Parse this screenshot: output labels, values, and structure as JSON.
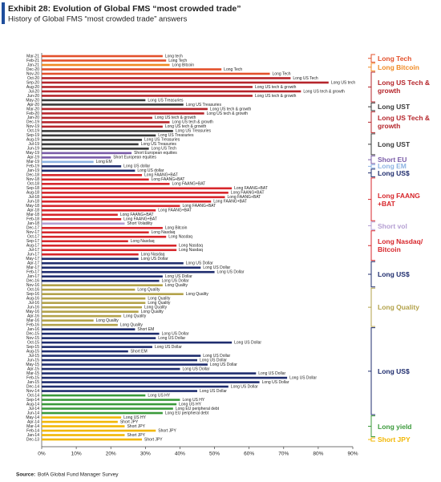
{
  "chart_data": {
    "type": "bar",
    "orientation": "horizontal",
    "title": "Exhibit 28: Evolution of Global FMS “most crowded trade”",
    "subtitle": "History of Global FMS “most crowded trade” answers",
    "source_label": "Source:",
    "source": "BofA Global Fund Manager Survey",
    "categories": [
      "Mar-21",
      "Feb-21",
      "Jan-21",
      "Dec-20",
      "Nov-20",
      "Oct-20",
      "Sep-20",
      "Aug-20",
      "Jul-20",
      "Jun-20",
      "May-20",
      "Apr-20",
      "Mar-20",
      "Feb-20",
      "Jan-20",
      "Dec-19",
      "Nov-19",
      "Oct-19",
      "Sep-19",
      "Aug-19",
      "Jul-19",
      "Jun-19",
      "May-19",
      "Apr-19",
      "Mar-19",
      "Feb-19",
      "Jan-19",
      "Dec-18",
      "Nov-18",
      "Oct-18",
      "Sep-18",
      "Aug-18",
      "Jul-18",
      "Jun-18",
      "May-18",
      "Apr-18",
      "Mar-18",
      "Feb-18",
      "Jan-18",
      "Dec-17",
      "Nov-17",
      "Oct-17",
      "Sep-17",
      "Aug-17",
      "Jul-17",
      "Jun-17",
      "May-17",
      "Apr-17",
      "Mar-17",
      "Feb-17",
      "Jan-17",
      "Dec-16",
      "Nov-16",
      "Oct-16",
      "Sep-16",
      "Aug-16",
      "Jul-16",
      "Jun-16",
      "May-16",
      "Apr-16",
      "Mar-16",
      "Feb-16",
      "Jan-16",
      "Dec-15",
      "Nov-15",
      "Oct-15",
      "Sep-15",
      "Aug-15",
      "Jul-15",
      "Jun-15",
      "May-15",
      "Apr-15",
      "Mar-15",
      "Feb-15",
      "Jan-15",
      "Dec-14",
      "Nov-14",
      "Oct-14",
      "Sep-14",
      "Aug-14",
      "Jul-14",
      "Jun-14",
      "May-14",
      "Apr-14",
      "Mar-14",
      "Feb-14",
      "Jan-14",
      "Dec-13"
    ],
    "values": [
      35,
      36,
      37,
      52,
      66,
      72,
      83,
      61,
      75,
      61,
      30,
      41,
      48,
      47,
      32,
      37,
      35,
      38,
      33,
      29,
      28,
      31,
      26,
      20,
      15,
      23,
      27,
      29,
      31,
      37,
      55,
      54,
      53,
      49,
      40,
      33,
      22,
      23,
      24,
      35,
      31,
      36,
      25,
      39,
      39,
      28,
      28,
      41,
      46,
      50,
      35,
      34,
      35,
      27,
      41,
      30,
      30,
      29,
      28,
      23,
      15,
      22,
      27,
      34,
      33,
      55,
      32,
      25,
      46,
      45,
      48,
      40,
      62,
      71,
      63,
      54,
      45,
      30,
      40,
      39,
      38,
      35,
      23,
      22,
      24,
      33,
      24,
      29
    ],
    "labels": [
      "Long tech",
      "Long Tech",
      "Long Bitcoin",
      "Long Tech",
      "Long Tech",
      "Long US Tech",
      "Long US tech",
      "Long US tech & growth",
      "Long US tech & growth",
      "Long US tech & growth",
      "Long US Treasuries",
      "Long US Treasuries",
      "Long US tech & growth",
      "Long US tech & growth",
      "Long US tech & growth",
      "Long US tech & growth",
      "Long US tech & growth",
      "Long US Treasuries",
      "Long US Treasuries",
      "Long US Treasuries",
      "Long US Treasuries",
      "Long US Tech",
      "Short European equities",
      "Short European equities",
      "Long EM",
      "Long US dollar",
      "Long US dollar",
      "Long FAANG+BAT",
      "Long FAANG+BAT",
      "Long FAANG+BAT",
      "Long FAANG+BAT",
      "Long FAANG+BAT",
      "Long FAANG+BAT",
      "Long FAANG+BAT",
      "Long FAANG+BAT",
      "Long FAANG+BAT",
      "Long FAANG+BAT",
      "Long FAANG+BAT",
      "Short Volatility",
      "Long Bitcoin",
      "Long Nasdaq",
      "Long Nasdaq",
      "Long Nasdaq",
      "Long Nasdaq",
      "Long Nasdaq",
      "Long Nasdaq",
      "Long US Dollar",
      "Long US Dollar",
      "Long US Dollar",
      "Long US Dollar",
      "Long US Dollar",
      "Long US Dollar",
      "Long Quality",
      "Long Quality",
      "Long Quality",
      "Long Quality",
      "Long Quality",
      "Long Quality",
      "Long Quality",
      "Long Quality",
      "Long Quality",
      "Long Quality",
      "Short EM",
      "Long US Dollar",
      "Long US Dollar",
      "Long US Dollar",
      "Long US Dollar",
      "Short EM",
      "Long US Dollar",
      "Long US Dollar",
      "Long US Dollar",
      "Long US Dollar",
      "Long US Dollar",
      "Long US Dollar",
      "Long US Dollar",
      "Long US Dollar",
      "Long US Dollar",
      "Long US HY",
      "Long US HY",
      "Long US HY",
      "Long EU peripheral debt",
      "Long EU peripheral debt",
      "Long US HY",
      "Short JPY",
      "Short JPY",
      "Short JPY",
      "Short JPY",
      "Short JPY"
    ],
    "colors": [
      "#e3502b",
      "#e3502b",
      "#f08a24",
      "#e3502b",
      "#e3502b",
      "#b5252b",
      "#b5252b",
      "#b5252b",
      "#b5252b",
      "#b5252b",
      "#3a3a3a",
      "#3a3a3a",
      "#b5252b",
      "#b5252b",
      "#b5252b",
      "#b5252b",
      "#b5252b",
      "#3a3a3a",
      "#3a3a3a",
      "#3a3a3a",
      "#3a3a3a",
      "#3a3a3a",
      "#7a5ca8",
      "#7a5ca8",
      "#8db3e2",
      "#1f2d6e",
      "#1f2d6e",
      "#d7262b",
      "#d7262b",
      "#d7262b",
      "#d7262b",
      "#d7262b",
      "#d7262b",
      "#d7262b",
      "#d7262b",
      "#d7262b",
      "#d7262b",
      "#d7262b",
      "#b49ed2",
      "#d7262b",
      "#d7262b",
      "#d7262b",
      "#d7262b",
      "#d7262b",
      "#d7262b",
      "#d7262b",
      "#1f2d6e",
      "#1f2d6e",
      "#1f2d6e",
      "#1f2d6e",
      "#1f2d6e",
      "#1f2d6e",
      "#b3a24a",
      "#b3a24a",
      "#b3a24a",
      "#b3a24a",
      "#b3a24a",
      "#b3a24a",
      "#b3a24a",
      "#b3a24a",
      "#b3a24a",
      "#b3a24a",
      "#1f2d6e",
      "#1f2d6e",
      "#1f2d6e",
      "#1f2d6e",
      "#1f2d6e",
      "#1f2d6e",
      "#1f2d6e",
      "#1f2d6e",
      "#1f2d6e",
      "#1f2d6e",
      "#1f2d6e",
      "#1f2d6e",
      "#1f2d6e",
      "#1f2d6e",
      "#1f2d6e",
      "#3b9a3b",
      "#3b9a3b",
      "#3b9a3b",
      "#3b9a3b",
      "#3b9a3b",
      "#f2b705",
      "#f2b705",
      "#f2b705",
      "#f2b705",
      "#f2b705",
      "#f2b705"
    ],
    "groups": [
      {
        "name": "Long Tech",
        "color": "#e3502b",
        "first": "Mar-21",
        "last": "Feb-21"
      },
      {
        "name": "Long Bitcoin",
        "color": "#f08a24",
        "first": "Jan-21",
        "last": "Dec-20"
      },
      {
        "name": "Long US Tech & growth",
        "color": "#b5252b",
        "first": "Nov-20",
        "last": "May-20"
      },
      {
        "name": "Long UST",
        "color": "#3a3a3a",
        "first": "Apr-20",
        "last": "Mar-20"
      },
      {
        "name": "Long US Tech & growth",
        "color": "#b5252b",
        "first": "Feb-20",
        "last": "Oct-19"
      },
      {
        "name": "Long UST",
        "color": "#3a3a3a",
        "first": "Sep-19",
        "last": "May-19"
      },
      {
        "name": "Short EU",
        "color": "#7a5ca8",
        "first": "Apr-19",
        "last": "Mar-19"
      },
      {
        "name": "Long EM",
        "color": "#8db3e2",
        "first": "Feb-19",
        "last": "Feb-19"
      },
      {
        "name": "Long US$",
        "color": "#1f2d6e",
        "first": "Jan-19",
        "last": "Dec-18"
      },
      {
        "name": "Long FAANG +BAT",
        "color": "#d7262b",
        "first": "Nov-18",
        "last": "Feb-18"
      },
      {
        "name": "Short vol",
        "color": "#b49ed2",
        "first": "Jan-18",
        "last": "Dec-17"
      },
      {
        "name": "Long Nasdaq/ Bitcoin",
        "color": "#d7262b",
        "first": "Nov-17",
        "last": "May-17"
      },
      {
        "name": "Long US$",
        "color": "#1f2d6e",
        "first": "Apr-17",
        "last": "Nov-16"
      },
      {
        "name": "Long Quality",
        "color": "#b3a24a",
        "first": "Oct-16",
        "last": "Feb-16"
      },
      {
        "name": "Long US$",
        "color": "#1f2d6e",
        "first": "Jan-16",
        "last": "Jun-14"
      },
      {
        "name": "Long yield",
        "color": "#3b9a3b",
        "first": "May-14",
        "last": "Jan-14"
      },
      {
        "name": "Short JPY",
        "color": "#f2b705",
        "first": "Dec-13",
        "last": "Dec-13"
      }
    ],
    "xlim": [
      0,
      90
    ],
    "xticks": [
      {
        "value": 0,
        "label": "0%"
      },
      {
        "value": 10,
        "label": "10%"
      },
      {
        "value": 20,
        "label": "20%"
      },
      {
        "value": 30,
        "label": "30%"
      },
      {
        "value": 40,
        "label": "40%"
      },
      {
        "value": 50,
        "label": "50%"
      },
      {
        "value": 60,
        "label": "60%"
      },
      {
        "value": 70,
        "label": "70%"
      },
      {
        "value": 80,
        "label": "80%"
      },
      {
        "value": 90,
        "label": "90%"
      }
    ]
  }
}
